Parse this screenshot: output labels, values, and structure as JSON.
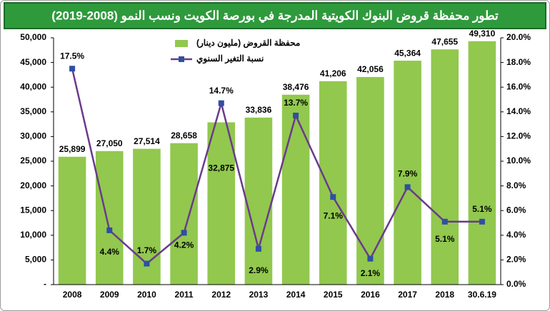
{
  "chart_data": {
    "type": "bar-line",
    "title": "تطور محفظة قروض البنوك الكويتية المدرجة في بورصة الكويت ونسب النمو (2008-2019)",
    "categories": [
      "2008",
      "2009",
      "2010",
      "2011",
      "2012",
      "2013",
      "2014",
      "2015",
      "2016",
      "2017",
      "2018",
      "30.6.19"
    ],
    "series": [
      {
        "name": "محفظة القروض (مليون دينار)",
        "type": "bar",
        "color": "#92c84e",
        "values": [
          25899,
          27050,
          27514,
          28658,
          32875,
          33836,
          38476,
          41206,
          42056,
          45364,
          47655,
          49310
        ],
        "value_labels": [
          "25,899",
          "27,050",
          "27,514",
          "28,658",
          "32,875",
          "33,836",
          "38,476",
          "41,206",
          "42,056",
          "45,364",
          "47,655",
          "49,310"
        ]
      },
      {
        "name": "نسبة التغير السنوي",
        "type": "line",
        "axis": "y2",
        "color": "#6a3a8c",
        "marker_color": "#2f4fa3",
        "values": [
          17.5,
          4.4,
          1.7,
          4.2,
          14.7,
          2.9,
          13.7,
          7.1,
          2.1,
          7.9,
          5.1,
          5.1
        ],
        "value_labels": [
          "17.5%",
          "4.4%",
          "1.7%",
          "4.2%",
          "14.7%",
          "2.9%",
          "13.7%",
          "7.1%",
          "2.1%",
          "7.9%",
          "5.1%",
          "5.1%"
        ]
      }
    ],
    "ylim": [
      0,
      50000
    ],
    "yticks": [
      {
        "value": 0,
        "label": "-"
      },
      {
        "value": 5000,
        "label": "5,000"
      },
      {
        "value": 10000,
        "label": "10,000"
      },
      {
        "value": 15000,
        "label": "15,000"
      },
      {
        "value": 20000,
        "label": "20,000"
      },
      {
        "value": 25000,
        "label": "25,000"
      },
      {
        "value": 30000,
        "label": "30,000"
      },
      {
        "value": 35000,
        "label": "35,000"
      },
      {
        "value": 40000,
        "label": "40,000"
      },
      {
        "value": 45000,
        "label": "45,000"
      },
      {
        "value": 50000,
        "label": "50,000"
      }
    ],
    "y2lim": [
      0,
      20
    ],
    "y2ticks": [
      {
        "value": 0,
        "label": "0.0%"
      },
      {
        "value": 2,
        "label": "2.0%"
      },
      {
        "value": 4,
        "label": "4.0%"
      },
      {
        "value": 6,
        "label": "6.0%"
      },
      {
        "value": 8,
        "label": "8.0%"
      },
      {
        "value": 10,
        "label": "10.0%"
      },
      {
        "value": 12,
        "label": "12.0%"
      },
      {
        "value": 14,
        "label": "14.0%"
      },
      {
        "value": 16,
        "label": "16.0%"
      },
      {
        "value": 18,
        "label": "18.0%"
      },
      {
        "value": 20,
        "label": "20.0%"
      }
    ],
    "grid": false,
    "legend": "top-left"
  }
}
